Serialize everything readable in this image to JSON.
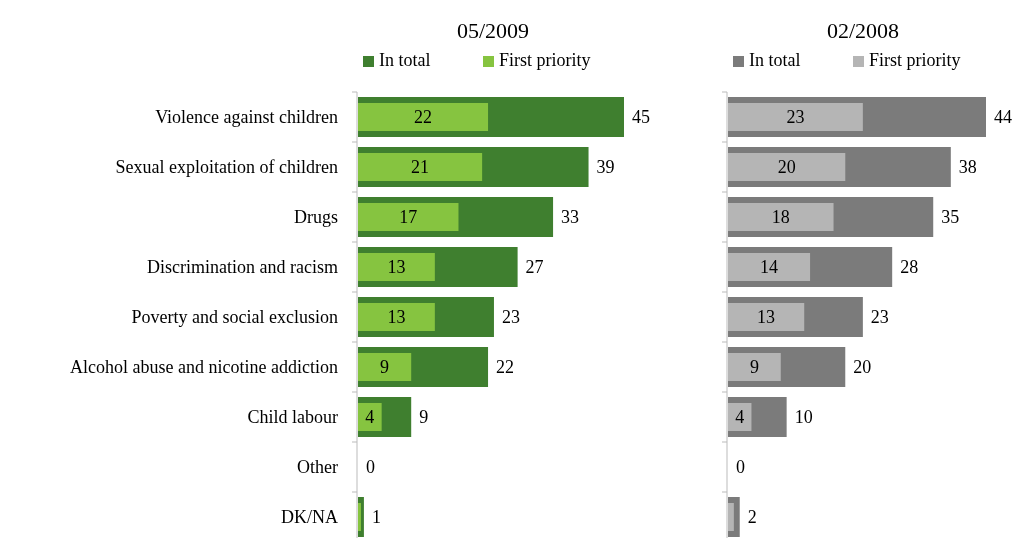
{
  "chart_data": [
    {
      "type": "bar",
      "orientation": "horizontal",
      "title": "05/2009",
      "categories": [
        "Violence against children",
        "Sexual exploitation of children",
        "Drugs",
        "Discrimination and racism",
        "Poverty and social exclusion",
        "Alcohol abuse and nicotine addiction",
        "Child labour",
        "Other",
        "DK/NA"
      ],
      "tick_labels": "y",
      "legend": "top",
      "series": [
        {
          "name": "In total",
          "color": "#3f7f2f",
          "values": [
            45,
            39,
            33,
            27,
            23,
            22,
            9,
            0,
            1
          ],
          "value_labels": [
            "45",
            "39",
            "33",
            "27",
            "23",
            "22",
            "9",
            "0",
            "1"
          ]
        },
        {
          "name": "First priority",
          "color": "#86c440",
          "values": [
            22,
            21,
            17,
            13,
            13,
            9,
            4,
            0,
            0.5
          ],
          "value_labels": [
            "22",
            "21",
            "17",
            "13",
            "13",
            "9",
            "4",
            null,
            null
          ]
        }
      ]
    },
    {
      "type": "bar",
      "orientation": "horizontal",
      "title": "02/2008",
      "categories": [
        null,
        null,
        null,
        null,
        null,
        null,
        null,
        null,
        null
      ],
      "tick_labels": false,
      "legend": "top",
      "series": [
        {
          "name": "In total",
          "color": "#7b7b7b",
          "values": [
            44,
            38,
            35,
            28,
            23,
            20,
            10,
            0,
            2
          ],
          "value_labels": [
            "44",
            "38",
            "35",
            "28",
            "23",
            "20",
            "10",
            "0",
            "2"
          ]
        },
        {
          "name": "First priority",
          "color": "#b5b5b5",
          "values": [
            23,
            20,
            18,
            14,
            13,
            9,
            4,
            0,
            1
          ],
          "value_labels": [
            "23",
            "20",
            "18",
            "14",
            "13",
            "9",
            "4",
            null,
            null
          ]
        }
      ]
    }
  ]
}
